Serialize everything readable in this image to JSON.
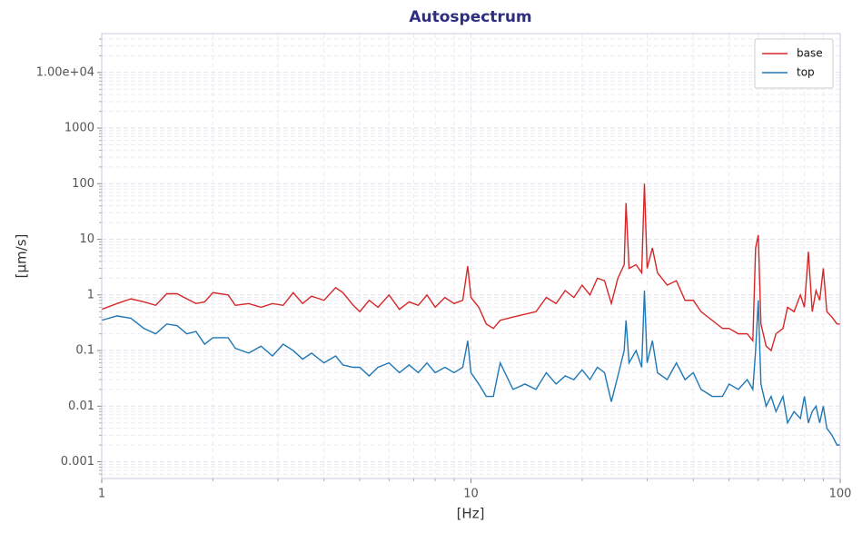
{
  "chart_data": {
    "type": "line",
    "title": "Autospectrum",
    "xlabel": "[Hz]",
    "ylabel": "[µm/s]",
    "x": [
      1,
      1.1,
      1.2,
      1.3,
      1.4,
      1.5,
      1.6,
      1.7,
      1.8,
      1.9,
      2.0,
      2.2,
      2.3,
      2.5,
      2.7,
      2.9,
      3.1,
      3.3,
      3.5,
      3.7,
      4.0,
      4.3,
      4.5,
      4.8,
      5.0,
      5.3,
      5.6,
      6.0,
      6.4,
      6.8,
      7.2,
      7.6,
      8.0,
      8.5,
      9.0,
      9.5,
      9.8,
      10,
      10.5,
      11,
      11.5,
      12,
      13,
      14,
      15,
      16,
      17,
      18,
      19,
      20,
      21,
      22,
      23,
      24,
      25,
      26,
      26.3,
      26.8,
      28,
      29,
      29.5,
      30,
      31,
      32,
      34,
      36,
      38,
      40,
      42,
      45,
      48,
      50,
      53,
      56,
      58,
      59,
      60,
      61,
      63,
      65,
      67,
      70,
      72,
      75,
      78,
      80,
      82,
      84,
      86,
      88,
      90,
      92,
      95,
      98,
      100
    ],
    "series": [
      {
        "name": "base",
        "color": "#d62728",
        "values": [
          0.55,
          0.7,
          0.85,
          0.75,
          0.65,
          1.05,
          1.05,
          0.85,
          0.7,
          0.75,
          1.1,
          1.0,
          0.65,
          0.7,
          0.6,
          0.7,
          0.65,
          1.1,
          0.7,
          0.95,
          0.8,
          1.35,
          1.1,
          0.65,
          0.5,
          0.8,
          0.6,
          1.0,
          0.55,
          0.75,
          0.65,
          1.0,
          0.6,
          0.9,
          0.7,
          0.8,
          3.3,
          0.9,
          0.6,
          0.3,
          0.25,
          0.35,
          0.4,
          0.45,
          0.5,
          0.9,
          0.7,
          1.2,
          0.9,
          1.5,
          1.0,
          2.0,
          1.8,
          0.7,
          2.0,
          3.5,
          45,
          3.0,
          3.5,
          2.5,
          100,
          3,
          7,
          2.5,
          1.5,
          1.8,
          0.8,
          0.8,
          0.5,
          0.35,
          0.25,
          0.25,
          0.2,
          0.2,
          0.15,
          7,
          12,
          0.3,
          0.12,
          0.1,
          0.2,
          0.25,
          0.6,
          0.5,
          1.0,
          0.6,
          6,
          0.5,
          1.2,
          0.8,
          3,
          0.5,
          0.4,
          0.3,
          0.3
        ]
      },
      {
        "name": "top",
        "color": "#1f77b4",
        "values": [
          0.35,
          0.42,
          0.38,
          0.25,
          0.2,
          0.3,
          0.28,
          0.2,
          0.22,
          0.13,
          0.17,
          0.17,
          0.11,
          0.09,
          0.12,
          0.08,
          0.13,
          0.1,
          0.07,
          0.09,
          0.06,
          0.08,
          0.055,
          0.05,
          0.05,
          0.035,
          0.05,
          0.06,
          0.04,
          0.055,
          0.04,
          0.06,
          0.04,
          0.05,
          0.04,
          0.05,
          0.15,
          0.04,
          0.025,
          0.015,
          0.015,
          0.06,
          0.02,
          0.025,
          0.02,
          0.04,
          0.025,
          0.035,
          0.03,
          0.045,
          0.03,
          0.05,
          0.04,
          0.012,
          0.035,
          0.1,
          0.35,
          0.06,
          0.1,
          0.05,
          1.2,
          0.06,
          0.15,
          0.04,
          0.03,
          0.06,
          0.03,
          0.04,
          0.02,
          0.015,
          0.015,
          0.025,
          0.02,
          0.03,
          0.02,
          0.1,
          0.8,
          0.025,
          0.01,
          0.015,
          0.008,
          0.015,
          0.005,
          0.008,
          0.006,
          0.015,
          0.005,
          0.008,
          0.01,
          0.005,
          0.01,
          0.004,
          0.003,
          0.002,
          0.002
        ]
      }
    ],
    "xlim": [
      1,
      100
    ],
    "xticks": [
      1,
      10,
      100
    ],
    "ylim": [
      0.0005,
      50000
    ],
    "yticks": [
      0.001,
      0.01,
      0.1,
      1,
      10,
      100,
      1000,
      {
        "value": 10000,
        "label": "1.00e+04"
      }
    ],
    "xscale": "log",
    "yscale": "log",
    "grid": true,
    "legend": "upper right"
  }
}
